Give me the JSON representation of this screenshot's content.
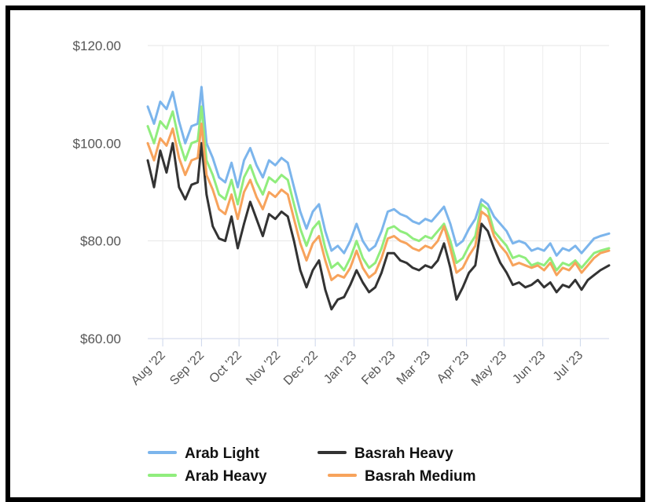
{
  "chart_data": {
    "type": "line",
    "title": "",
    "xlabel": "",
    "ylabel": "",
    "ylim": [
      60,
      120
    ],
    "y_ticks": [
      "$60.00",
      "$80.00",
      "$100.00",
      "$120.00"
    ],
    "y_tick_values": [
      60,
      80,
      100,
      120
    ],
    "x_ticks": [
      "Aug '22",
      "Sep '22",
      "Oct '22",
      "Nov '22",
      "Dec '22",
      "Jan '23",
      "Feb '23",
      "Mar '23",
      "Apr '23",
      "May '23",
      "Jun '23",
      "Jul '23"
    ],
    "x_start": "2022-07-20",
    "x_end": "2023-07-24",
    "grid": {
      "vertical": true,
      "horizontal": true
    },
    "legend_position": "bottom",
    "series": [
      {
        "name": "Arab Light",
        "color": "#7cb5ec",
        "x": [
          "2022-07-20",
          "2022-07-25",
          "2022-07-30",
          "2022-08-04",
          "2022-08-09",
          "2022-08-14",
          "2022-08-19",
          "2022-08-24",
          "2022-08-29",
          "2022-09-01",
          "2022-09-05",
          "2022-09-10",
          "2022-09-15",
          "2022-09-20",
          "2022-09-25",
          "2022-09-30",
          "2022-10-05",
          "2022-10-10",
          "2022-10-15",
          "2022-10-20",
          "2022-10-25",
          "2022-10-30",
          "2022-11-04",
          "2022-11-09",
          "2022-11-14",
          "2022-11-19",
          "2022-11-24",
          "2022-11-29",
          "2022-12-04",
          "2022-12-09",
          "2022-12-14",
          "2022-12-19",
          "2022-12-24",
          "2022-12-29",
          "2023-01-03",
          "2023-01-08",
          "2023-01-13",
          "2023-01-18",
          "2023-01-23",
          "2023-01-28",
          "2023-02-02",
          "2023-02-07",
          "2023-02-12",
          "2023-02-17",
          "2023-02-22",
          "2023-02-27",
          "2023-03-04",
          "2023-03-09",
          "2023-03-14",
          "2023-03-19",
          "2023-03-24",
          "2023-03-29",
          "2023-04-03",
          "2023-04-08",
          "2023-04-13",
          "2023-04-18",
          "2023-04-23",
          "2023-04-28",
          "2023-05-03",
          "2023-05-08",
          "2023-05-13",
          "2023-05-18",
          "2023-05-23",
          "2023-05-28",
          "2023-06-02",
          "2023-06-07",
          "2023-06-12",
          "2023-06-17",
          "2023-06-22",
          "2023-06-27",
          "2023-07-02",
          "2023-07-07",
          "2023-07-12",
          "2023-07-17",
          "2023-07-24"
        ],
        "values": [
          107.5,
          104.0,
          108.5,
          107.0,
          110.5,
          104.5,
          100.0,
          103.5,
          104.0,
          111.5,
          100.0,
          97.0,
          93.0,
          92.0,
          96.0,
          91.0,
          96.5,
          99.0,
          95.5,
          93.0,
          96.5,
          95.5,
          97.0,
          96.0,
          91.0,
          86.0,
          82.5,
          86.0,
          87.5,
          82.0,
          78.0,
          79.0,
          77.5,
          80.0,
          83.5,
          80.0,
          78.0,
          79.0,
          82.0,
          86.0,
          86.5,
          85.5,
          85.0,
          84.0,
          83.5,
          84.5,
          84.0,
          85.5,
          87.0,
          83.5,
          79.0,
          80.0,
          82.5,
          84.5,
          88.5,
          87.5,
          85.0,
          83.5,
          82.0,
          79.5,
          80.0,
          79.5,
          78.0,
          78.5,
          78.0,
          79.5,
          77.0,
          78.5,
          78.0,
          79.0,
          77.5,
          79.0,
          80.5,
          81.0,
          81.5
        ]
      },
      {
        "name": "Arab Heavy",
        "color": "#90ed7d",
        "x": [
          "2022-07-20",
          "2022-07-25",
          "2022-07-30",
          "2022-08-04",
          "2022-08-09",
          "2022-08-14",
          "2022-08-19",
          "2022-08-24",
          "2022-08-29",
          "2022-09-01",
          "2022-09-05",
          "2022-09-10",
          "2022-09-15",
          "2022-09-20",
          "2022-09-25",
          "2022-09-30",
          "2022-10-05",
          "2022-10-10",
          "2022-10-15",
          "2022-10-20",
          "2022-10-25",
          "2022-10-30",
          "2022-11-04",
          "2022-11-09",
          "2022-11-14",
          "2022-11-19",
          "2022-11-24",
          "2022-11-29",
          "2022-12-04",
          "2022-12-09",
          "2022-12-14",
          "2022-12-19",
          "2022-12-24",
          "2022-12-29",
          "2023-01-03",
          "2023-01-08",
          "2023-01-13",
          "2023-01-18",
          "2023-01-23",
          "2023-01-28",
          "2023-02-02",
          "2023-02-07",
          "2023-02-12",
          "2023-02-17",
          "2023-02-22",
          "2023-02-27",
          "2023-03-04",
          "2023-03-09",
          "2023-03-14",
          "2023-03-19",
          "2023-03-24",
          "2023-03-29",
          "2023-04-03",
          "2023-04-08",
          "2023-04-13",
          "2023-04-18",
          "2023-04-23",
          "2023-04-28",
          "2023-05-03",
          "2023-05-08",
          "2023-05-13",
          "2023-05-18",
          "2023-05-23",
          "2023-05-28",
          "2023-06-02",
          "2023-06-07",
          "2023-06-12",
          "2023-06-17",
          "2023-06-22",
          "2023-06-27",
          "2023-07-02",
          "2023-07-07",
          "2023-07-12",
          "2023-07-17",
          "2023-07-24"
        ],
        "values": [
          103.5,
          100.0,
          104.5,
          103.0,
          106.5,
          100.5,
          96.5,
          100.0,
          100.5,
          107.5,
          96.5,
          93.5,
          89.5,
          88.5,
          92.5,
          87.5,
          93.0,
          95.5,
          92.0,
          89.5,
          93.0,
          92.0,
          93.5,
          92.5,
          87.5,
          82.5,
          79.0,
          82.5,
          84.0,
          78.5,
          74.5,
          75.5,
          74.0,
          76.5,
          80.0,
          76.5,
          74.5,
          75.5,
          78.5,
          82.5,
          83.0,
          82.0,
          81.5,
          80.5,
          80.0,
          81.0,
          80.5,
          82.0,
          83.5,
          80.0,
          75.5,
          76.5,
          79.0,
          81.0,
          87.5,
          86.5,
          82.0,
          80.5,
          79.0,
          76.5,
          77.0,
          76.5,
          75.0,
          75.5,
          75.0,
          76.5,
          74.0,
          75.5,
          75.0,
          76.0,
          74.5,
          76.0,
          77.5,
          78.0,
          78.5
        ]
      },
      {
        "name": "Basrah Heavy",
        "color": "#333333",
        "x": [
          "2022-07-20",
          "2022-07-25",
          "2022-07-30",
          "2022-08-04",
          "2022-08-09",
          "2022-08-14",
          "2022-08-19",
          "2022-08-24",
          "2022-08-29",
          "2022-09-01",
          "2022-09-05",
          "2022-09-10",
          "2022-09-15",
          "2022-09-20",
          "2022-09-25",
          "2022-09-30",
          "2022-10-05",
          "2022-10-10",
          "2022-10-15",
          "2022-10-20",
          "2022-10-25",
          "2022-10-30",
          "2022-11-04",
          "2022-11-09",
          "2022-11-14",
          "2022-11-19",
          "2022-11-24",
          "2022-11-29",
          "2022-12-04",
          "2022-12-09",
          "2022-12-14",
          "2022-12-19",
          "2022-12-24",
          "2022-12-29",
          "2023-01-03",
          "2023-01-08",
          "2023-01-13",
          "2023-01-18",
          "2023-01-23",
          "2023-01-28",
          "2023-02-02",
          "2023-02-07",
          "2023-02-12",
          "2023-02-17",
          "2023-02-22",
          "2023-02-27",
          "2023-03-04",
          "2023-03-09",
          "2023-03-14",
          "2023-03-19",
          "2023-03-24",
          "2023-03-29",
          "2023-04-03",
          "2023-04-08",
          "2023-04-13",
          "2023-04-18",
          "2023-04-23",
          "2023-04-28",
          "2023-05-03",
          "2023-05-08",
          "2023-05-13",
          "2023-05-18",
          "2023-05-23",
          "2023-05-28",
          "2023-06-02",
          "2023-06-07",
          "2023-06-12",
          "2023-06-17",
          "2023-06-22",
          "2023-06-27",
          "2023-07-02",
          "2023-07-07",
          "2023-07-12",
          "2023-07-17",
          "2023-07-24"
        ],
        "values": [
          96.5,
          91.0,
          98.5,
          94.0,
          100.0,
          91.0,
          88.5,
          91.5,
          92.0,
          100.0,
          89.5,
          83.0,
          80.5,
          80.0,
          85.0,
          78.5,
          83.5,
          88.0,
          84.5,
          81.0,
          85.5,
          84.5,
          86.0,
          85.0,
          80.0,
          74.0,
          70.5,
          74.0,
          76.0,
          70.0,
          66.0,
          68.0,
          68.5,
          71.0,
          74.0,
          71.5,
          69.5,
          70.5,
          73.5,
          77.5,
          77.5,
          76.0,
          75.5,
          74.5,
          74.0,
          75.0,
          74.5,
          76.0,
          79.5,
          74.5,
          68.0,
          70.5,
          73.5,
          75.0,
          83.5,
          82.0,
          78.5,
          75.5,
          73.5,
          71.0,
          71.5,
          70.5,
          71.0,
          72.0,
          70.5,
          71.5,
          69.5,
          71.0,
          70.5,
          72.0,
          70.0,
          72.0,
          73.0,
          74.0,
          75.0
        ]
      },
      {
        "name": "Basrah Medium",
        "color": "#f7a35c",
        "x": [
          "2022-07-20",
          "2022-07-25",
          "2022-07-30",
          "2022-08-04",
          "2022-08-09",
          "2022-08-14",
          "2022-08-19",
          "2022-08-24",
          "2022-08-29",
          "2022-09-01",
          "2022-09-05",
          "2022-09-10",
          "2022-09-15",
          "2022-09-20",
          "2022-09-25",
          "2022-09-30",
          "2022-10-05",
          "2022-10-10",
          "2022-10-15",
          "2022-10-20",
          "2022-10-25",
          "2022-10-30",
          "2022-11-04",
          "2022-11-09",
          "2022-11-14",
          "2022-11-19",
          "2022-11-24",
          "2022-11-29",
          "2022-12-04",
          "2022-12-09",
          "2022-12-14",
          "2022-12-19",
          "2022-12-24",
          "2022-12-29",
          "2023-01-03",
          "2023-01-08",
          "2023-01-13",
          "2023-01-18",
          "2023-01-23",
          "2023-01-28",
          "2023-02-02",
          "2023-02-07",
          "2023-02-12",
          "2023-02-17",
          "2023-02-22",
          "2023-02-27",
          "2023-03-04",
          "2023-03-09",
          "2023-03-14",
          "2023-03-19",
          "2023-03-24",
          "2023-03-29",
          "2023-04-03",
          "2023-04-08",
          "2023-04-13",
          "2023-04-18",
          "2023-04-23",
          "2023-04-28",
          "2023-05-03",
          "2023-05-08",
          "2023-05-13",
          "2023-05-18",
          "2023-05-23",
          "2023-05-28",
          "2023-06-02",
          "2023-06-07",
          "2023-06-12",
          "2023-06-17",
          "2023-06-22",
          "2023-06-27",
          "2023-07-02",
          "2023-07-07",
          "2023-07-12",
          "2023-07-17",
          "2023-07-24"
        ],
        "values": [
          100.0,
          96.5,
          101.0,
          99.5,
          103.0,
          97.0,
          93.5,
          96.5,
          97.0,
          104.0,
          93.5,
          90.5,
          86.5,
          85.5,
          89.5,
          84.5,
          90.0,
          92.5,
          89.0,
          86.5,
          90.0,
          89.0,
          90.5,
          89.5,
          84.5,
          79.5,
          76.0,
          79.5,
          81.0,
          76.0,
          72.0,
          73.0,
          72.5,
          74.5,
          78.0,
          74.5,
          72.5,
          73.5,
          76.5,
          80.5,
          81.0,
          80.0,
          79.5,
          78.5,
          78.0,
          79.0,
          78.5,
          80.0,
          83.0,
          78.5,
          73.5,
          74.5,
          77.0,
          79.0,
          86.0,
          85.0,
          81.0,
          79.0,
          77.5,
          75.0,
          75.5,
          75.0,
          74.5,
          75.0,
          74.0,
          75.5,
          73.0,
          74.5,
          74.0,
          75.5,
          73.5,
          75.0,
          76.5,
          77.5,
          78.0
        ]
      }
    ]
  }
}
